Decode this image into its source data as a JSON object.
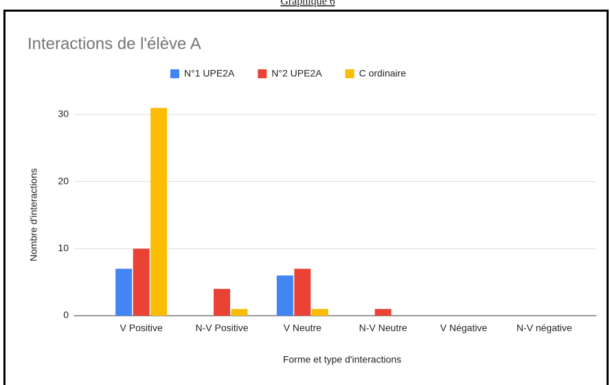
{
  "caption": "Graphique 6",
  "chart_data": {
    "type": "bar",
    "title": "Interactions de l'élève A",
    "categories": [
      "V Positive",
      "N-V Positive",
      "V Neutre",
      "N-V Neutre",
      "V Négative",
      "N-V négative"
    ],
    "series": [
      {
        "name": "N°1 UPE2A",
        "color": "#4285f4",
        "values": [
          7,
          0,
          6,
          0,
          0,
          0
        ]
      },
      {
        "name": "N°2 UPE2A",
        "color": "#ea4335",
        "values": [
          10,
          4,
          7,
          1,
          0,
          0
        ]
      },
      {
        "name": "C ordinaire",
        "color": "#fbbc04",
        "values": [
          31,
          1,
          1,
          0,
          0,
          0
        ]
      }
    ],
    "xlabel": "Forme et type d'interactions",
    "ylabel": "Nombre d'interactions",
    "ylim": [
      0,
      30
    ],
    "yticks": [
      0,
      10,
      20,
      30
    ],
    "grid": true,
    "legend": "top"
  }
}
